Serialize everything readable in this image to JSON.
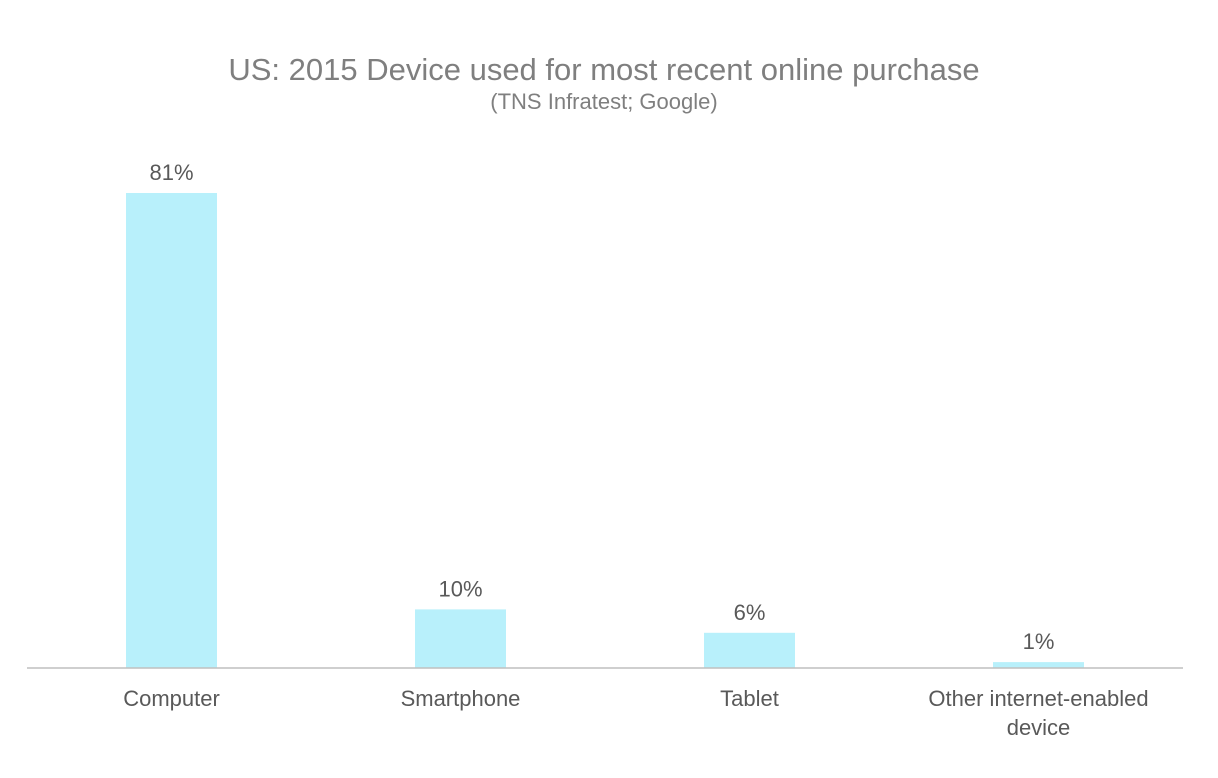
{
  "chart_data": {
    "type": "bar",
    "title": "US: 2015 Device used for most recent online purchase",
    "subtitle": "(TNS Infratest; Google)",
    "categories": [
      "Computer",
      "Smartphone",
      "Tablet",
      "Other internet-enabled device"
    ],
    "values": [
      81,
      10,
      6,
      1
    ],
    "value_labels": [
      "81%",
      "10%",
      "6%",
      "1%"
    ],
    "xlabel": "",
    "ylabel": "",
    "ylim": [
      0,
      81
    ],
    "grid": false,
    "legend": "none",
    "colors": {
      "bar": "#b8f0fb",
      "axis": "#bfbfbf",
      "title": "#7f7f7f",
      "text": "#595959"
    }
  }
}
